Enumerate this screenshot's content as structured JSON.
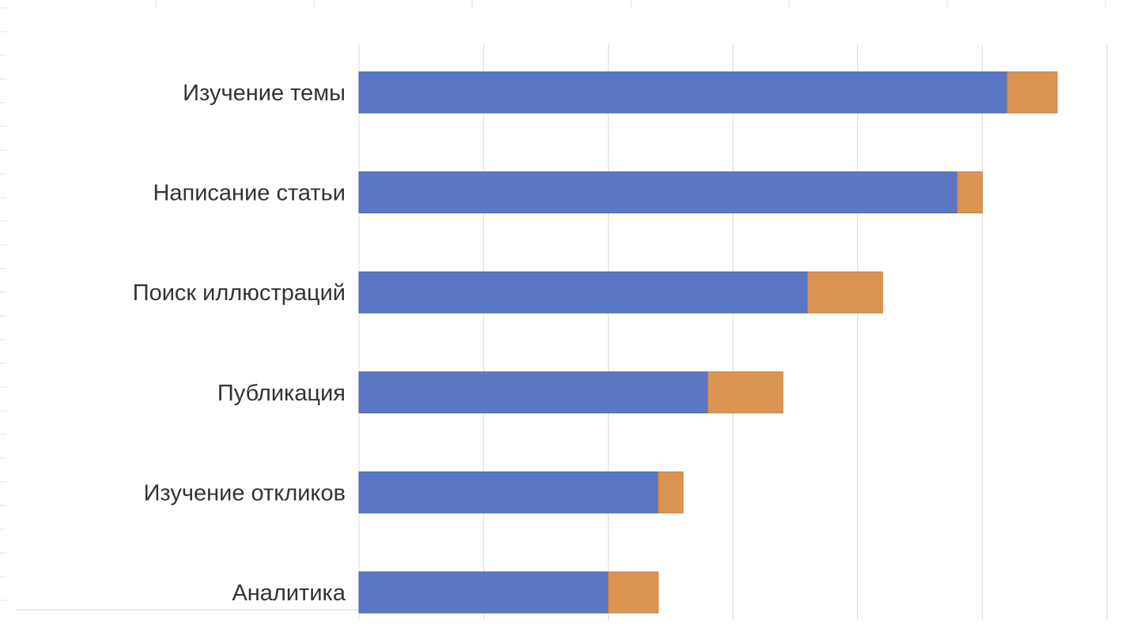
{
  "colors": {
    "series1": "#5b77c3",
    "series1_edge": "#4a67b8",
    "series2": "#db9452",
    "series2_edge": "#c98040",
    "gridline": "#d9d9d9",
    "sheet_grid": "#e2e2e2",
    "label": "#333333"
  },
  "chart_data": {
    "type": "bar",
    "orientation": "horizontal",
    "stacked": true,
    "categories": [
      "Изучение темы",
      "Написание статьи",
      "Поиск иллюстраций",
      "Публикация",
      "Изучение откликов",
      "Аналитика"
    ],
    "series": [
      {
        "values": [
          26,
          24,
          18,
          14,
          12,
          10
        ]
      },
      {
        "values": [
          2,
          1,
          3,
          3,
          1,
          2
        ]
      }
    ],
    "xlim": [
      0,
      30
    ],
    "grid": true,
    "legend": "none"
  }
}
